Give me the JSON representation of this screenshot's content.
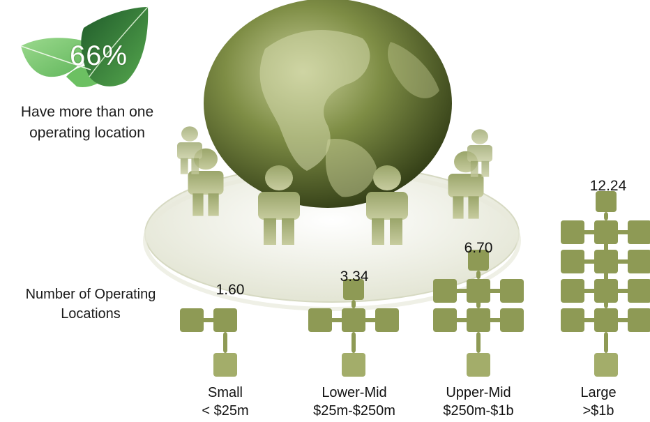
{
  "stat": {
    "value": "66%",
    "caption_line1": "Have more than one",
    "caption_line2": "operating location"
  },
  "axis_caption": {
    "line1": "Number of Operating",
    "line2": "Locations"
  },
  "colors": {
    "node": "#8e9a55",
    "node_light": "#a3ad6a",
    "globe": "#6f7f3c",
    "leaf_light": "#7fc873",
    "leaf_dark": "#2e7a3a"
  },
  "chart_data": {
    "type": "bar",
    "categories": [
      "Small\n< $25m",
      "Lower-Mid\n$25m-$250m",
      "Upper-Mid\n$250m-$1b",
      "Large\n>$1b"
    ],
    "category_lines": [
      [
        "Small",
        "< $25m"
      ],
      [
        "Lower-Mid",
        "$25m-$250m"
      ],
      [
        "Upper-Mid",
        "$250m-$1b"
      ],
      [
        "Large",
        ">$1b"
      ]
    ],
    "values": [
      1.6,
      3.34,
      6.7,
      12.24
    ],
    "value_labels": [
      "1.60",
      "3.34",
      "6.70",
      "12.24"
    ],
    "ylabel": "Number of Operating Locations"
  }
}
